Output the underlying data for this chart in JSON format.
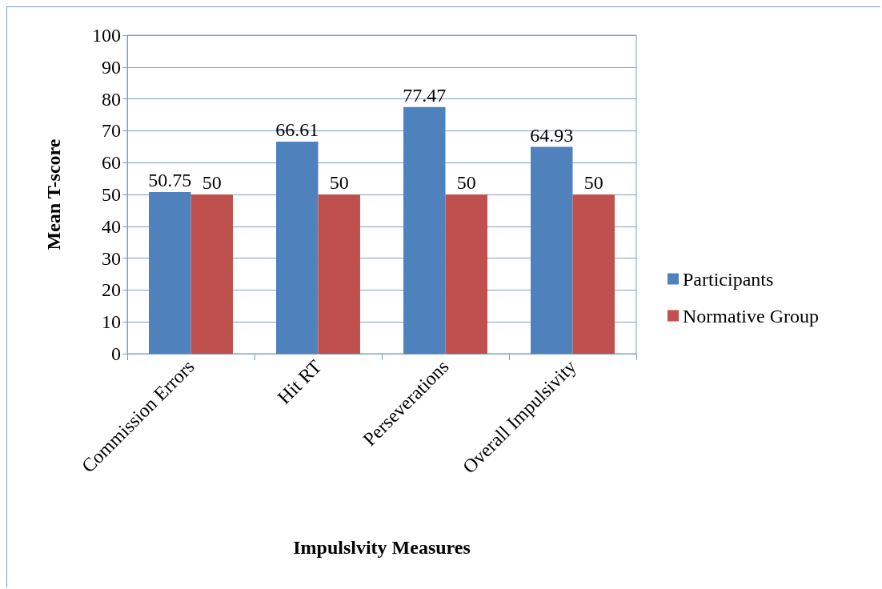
{
  "chart_data": {
    "type": "bar",
    "xlabel": "Impulslvity Measures",
    "ylabel": "Mean T-score",
    "categories": [
      "Commission Errors",
      "Hit RT",
      "Perseverations",
      "Overall Impulsivity"
    ],
    "series": [
      {
        "name": "Participants",
        "color": "#4f81bd",
        "values": [
          50.75,
          66.61,
          77.47,
          64.93
        ]
      },
      {
        "name": "Normative Group",
        "color": "#c0504d",
        "values": [
          50,
          50,
          50,
          50
        ]
      }
    ],
    "ylim": [
      0,
      100
    ],
    "yticks": [
      0,
      10,
      20,
      30,
      40,
      50,
      60,
      70,
      80,
      90,
      100
    ],
    "grid": "y",
    "legend": "right",
    "data_labels": true
  }
}
